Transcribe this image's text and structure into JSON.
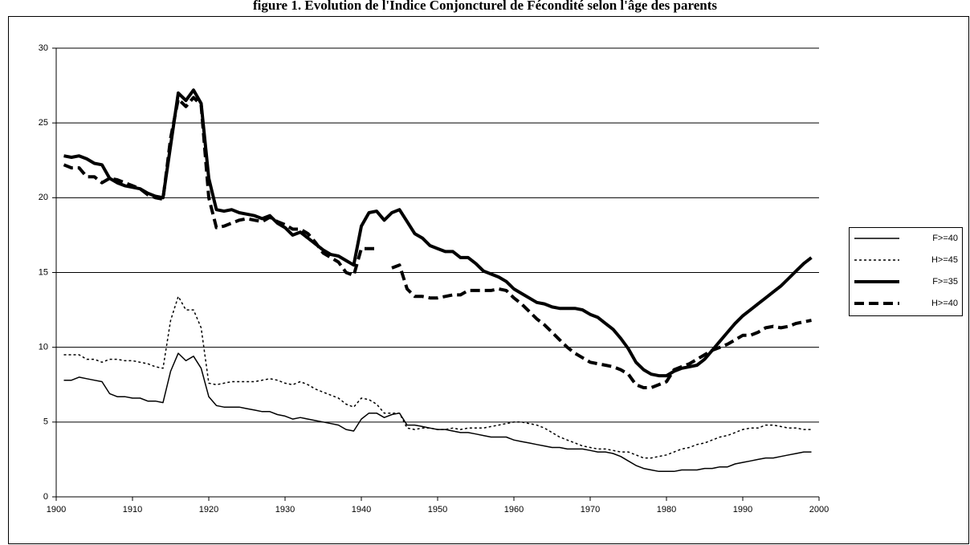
{
  "chart_data": {
    "type": "line",
    "title": "figure 1. Evolution de l'Indice Conjoncturel de Fécondité selon l'âge des parents",
    "x": [
      1901,
      1902,
      1903,
      1904,
      1905,
      1906,
      1907,
      1908,
      1909,
      1910,
      1911,
      1912,
      1913,
      1914,
      1915,
      1916,
      1917,
      1918,
      1919,
      1920,
      1921,
      1922,
      1923,
      1924,
      1925,
      1926,
      1927,
      1928,
      1929,
      1930,
      1931,
      1932,
      1933,
      1934,
      1935,
      1936,
      1937,
      1938,
      1939,
      1940,
      1941,
      1942,
      1943,
      1944,
      1945,
      1946,
      1947,
      1948,
      1949,
      1950,
      1951,
      1952,
      1953,
      1954,
      1955,
      1956,
      1957,
      1958,
      1959,
      1960,
      1961,
      1962,
      1963,
      1964,
      1965,
      1966,
      1967,
      1968,
      1969,
      1970,
      1971,
      1972,
      1973,
      1974,
      1975,
      1976,
      1977,
      1978,
      1979,
      1980,
      1981,
      1982,
      1983,
      1984,
      1985,
      1986,
      1987,
      1988,
      1989,
      1990,
      1991,
      1992,
      1993,
      1994,
      1995,
      1996,
      1997,
      1998,
      1999
    ],
    "series": [
      {
        "name": "F>=40",
        "color": "#000000",
        "line_style": "thin",
        "values": [
          7.8,
          7.8,
          8.0,
          7.9,
          7.8,
          7.7,
          6.9,
          6.7,
          6.7,
          6.6,
          6.6,
          6.4,
          6.4,
          6.3,
          8.4,
          9.6,
          9.1,
          9.4,
          8.6,
          6.7,
          6.1,
          6.0,
          6.0,
          6.0,
          5.9,
          5.8,
          5.7,
          5.7,
          5.5,
          5.4,
          5.2,
          5.3,
          5.2,
          5.1,
          5.0,
          4.9,
          4.8,
          4.5,
          4.4,
          5.2,
          5.6,
          5.6,
          5.3,
          5.5,
          5.6,
          4.8,
          4.8,
          4.7,
          4.6,
          4.5,
          4.5,
          4.4,
          4.3,
          4.3,
          4.2,
          4.1,
          4.0,
          4.0,
          4.0,
          3.8,
          3.7,
          3.6,
          3.5,
          3.4,
          3.3,
          3.3,
          3.2,
          3.2,
          3.2,
          3.1,
          3.0,
          3.0,
          2.9,
          2.7,
          2.4,
          2.1,
          1.9,
          1.8,
          1.7,
          1.7,
          1.7,
          1.8,
          1.8,
          1.8,
          1.9,
          1.9,
          2.0,
          2.0,
          2.2,
          2.3,
          2.4,
          2.5,
          2.6,
          2.6,
          2.7,
          2.8,
          2.9,
          3.0,
          3.0
        ]
      },
      {
        "name": "H>=45",
        "color": "#000000",
        "line_style": "dotted",
        "values": [
          9.5,
          9.5,
          9.5,
          9.2,
          9.2,
          9.0,
          9.2,
          9.2,
          9.1,
          9.1,
          9.0,
          8.9,
          8.7,
          8.6,
          11.8,
          13.4,
          12.5,
          12.5,
          11.3,
          7.6,
          7.5,
          7.6,
          7.7,
          7.7,
          7.7,
          7.7,
          7.8,
          7.9,
          7.8,
          7.6,
          7.5,
          7.7,
          7.5,
          7.2,
          7.0,
          6.8,
          6.6,
          6.2,
          6.0,
          6.6,
          6.5,
          6.2,
          5.6,
          5.6,
          5.6,
          4.6,
          4.5,
          4.6,
          4.6,
          4.5,
          4.5,
          4.6,
          4.5,
          4.6,
          4.6,
          4.6,
          4.7,
          4.8,
          4.9,
          5.0,
          5.0,
          4.9,
          4.8,
          4.6,
          4.3,
          4.0,
          3.8,
          3.6,
          3.4,
          3.3,
          3.2,
          3.2,
          3.1,
          3.0,
          3.0,
          2.8,
          2.6,
          2.6,
          2.7,
          2.8,
          3.0,
          3.2,
          3.3,
          3.5,
          3.6,
          3.8,
          4.0,
          4.1,
          4.3,
          4.5,
          4.6,
          4.6,
          4.8,
          4.8,
          4.7,
          4.6,
          4.6,
          4.5,
          4.5
        ]
      },
      {
        "name": "F>=35",
        "color": "#000000",
        "line_style": "thick",
        "values": [
          22.8,
          22.7,
          22.8,
          22.6,
          22.3,
          22.2,
          21.3,
          21.0,
          20.8,
          20.7,
          20.6,
          20.3,
          20.1,
          20.0,
          23.5,
          27.0,
          26.5,
          27.2,
          26.3,
          21.3,
          19.2,
          19.1,
          19.2,
          19.0,
          18.9,
          18.8,
          18.6,
          18.8,
          18.3,
          18.0,
          17.5,
          17.7,
          17.3,
          16.9,
          16.5,
          16.2,
          16.1,
          15.8,
          15.5,
          18.1,
          19.0,
          19.1,
          18.5,
          19.0,
          19.2,
          18.4,
          17.6,
          17.3,
          16.8,
          16.6,
          16.4,
          16.4,
          16.0,
          16.0,
          15.6,
          15.1,
          14.9,
          14.7,
          14.4,
          13.9,
          13.6,
          13.3,
          13.0,
          12.9,
          12.7,
          12.6,
          12.6,
          12.6,
          12.5,
          12.2,
          12.0,
          11.6,
          11.2,
          10.6,
          9.9,
          9.0,
          8.5,
          8.2,
          8.1,
          8.1,
          8.4,
          8.6,
          8.7,
          8.8,
          9.2,
          9.8,
          10.4,
          11.0,
          11.6,
          12.1,
          12.5,
          12.9,
          13.3,
          13.7,
          14.1,
          14.6,
          15.1,
          15.6,
          16.0
        ]
      },
      {
        "name": "H>=40",
        "color": "#000000",
        "line_style": "thick-dashed",
        "values": [
          22.2,
          22.0,
          22.0,
          21.4,
          21.4,
          21.0,
          21.3,
          21.2,
          21.0,
          20.8,
          20.6,
          20.2,
          20.0,
          19.9,
          24.0,
          26.6,
          26.1,
          26.7,
          26.2,
          20.0,
          18.0,
          18.1,
          18.3,
          18.5,
          18.6,
          18.5,
          18.4,
          18.7,
          18.4,
          18.2,
          17.9,
          17.9,
          17.6,
          17.0,
          16.3,
          16.0,
          15.7,
          15.0,
          14.8,
          16.6,
          16.6,
          16.6,
          null,
          15.3,
          15.5,
          13.9,
          13.4,
          13.4,
          13.3,
          13.3,
          13.4,
          13.5,
          13.5,
          13.8,
          13.8,
          13.8,
          13.8,
          13.9,
          13.8,
          13.3,
          12.9,
          12.4,
          11.9,
          11.5,
          11.0,
          10.5,
          10.0,
          9.6,
          9.3,
          9.0,
          8.9,
          8.8,
          8.7,
          8.5,
          8.2,
          7.5,
          7.3,
          7.3,
          7.5,
          7.7,
          8.5,
          8.7,
          8.9,
          9.2,
          9.5,
          9.8,
          10.0,
          10.2,
          10.5,
          10.8,
          10.8,
          11.0,
          11.3,
          11.4,
          11.3,
          11.4,
          11.6,
          11.7,
          11.8
        ]
      }
    ],
    "xlim": [
      1900,
      2000
    ],
    "xticks": [
      1900,
      1910,
      1920,
      1930,
      1940,
      1950,
      1960,
      1970,
      1980,
      1990,
      2000
    ],
    "ylim": [
      0,
      30
    ],
    "yticks": [
      0,
      5,
      10,
      15,
      20,
      25,
      30
    ],
    "grid": true,
    "legend": "right"
  }
}
